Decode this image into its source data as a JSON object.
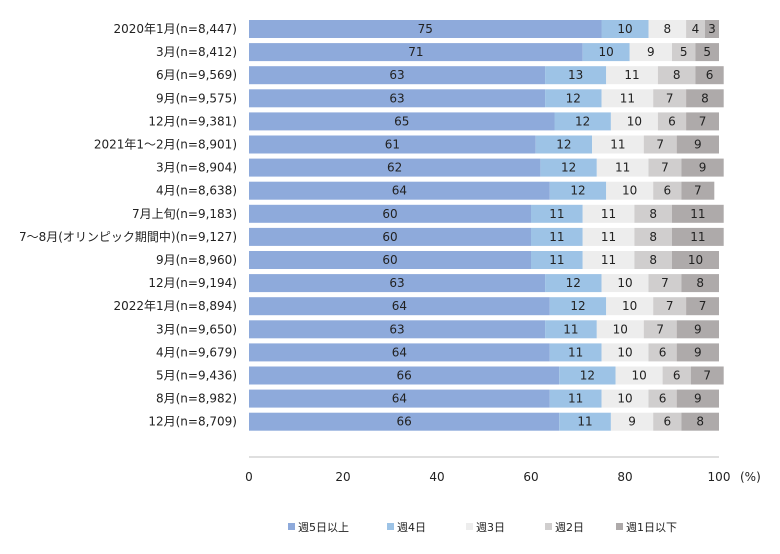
{
  "chart_data": {
    "type": "bar",
    "orientation": "horizontal",
    "stacked": true,
    "unit_label": "(%)",
    "xlim": [
      0,
      100
    ],
    "x_ticks": [
      "0",
      "20",
      "40",
      "60",
      "80",
      "100"
    ],
    "categories": [
      "2020年1月(n=8,447)",
      "3月(n=8,412)",
      "6月(n=9,569)",
      "9月(n=9,575)",
      "12月(n=9,381)",
      "2021年1～2月(n=8,901)",
      "3月(n=8,904)",
      "4月(n=8,638)",
      "7月上旬(n=9,183)",
      "7～8月(オリンピック期間中)(n=9,127)",
      "9月(n=8,960)",
      "12月(n=9,194)",
      "2022年1月(n=8,894)",
      "3月(n=9,650)",
      "4月(n=9,679)",
      "5月(n=9,436)",
      "8月(n=8,982)",
      "12月(n=8,709)"
    ],
    "series": [
      {
        "name": "週5日以上",
        "color": "#8eaadb",
        "values": [
          75,
          71,
          63,
          63,
          65,
          61,
          62,
          64,
          60,
          60,
          60,
          63,
          64,
          63,
          64,
          66,
          64,
          66
        ]
      },
      {
        "name": "週4日",
        "color": "#9dc3e6",
        "values": [
          10,
          10,
          13,
          12,
          12,
          12,
          12,
          12,
          11,
          11,
          11,
          12,
          12,
          11,
          11,
          12,
          11,
          11
        ]
      },
      {
        "name": "週3日",
        "color": "#ededed",
        "values": [
          8,
          9,
          11,
          11,
          10,
          11,
          11,
          10,
          11,
          11,
          11,
          10,
          10,
          10,
          10,
          10,
          10,
          9
        ]
      },
      {
        "name": "週2日",
        "color": "#d0cece",
        "values": [
          4,
          5,
          8,
          7,
          6,
          7,
          7,
          6,
          8,
          8,
          8,
          7,
          7,
          7,
          6,
          6,
          6,
          6
        ]
      },
      {
        "name": "週1日以下",
        "color": "#aeaaaa",
        "values": [
          3,
          5,
          6,
          8,
          7,
          9,
          9,
          7,
          11,
          11,
          10,
          8,
          7,
          9,
          9,
          7,
          9,
          8
        ]
      }
    ],
    "grid": false,
    "legend_position": "bottom"
  }
}
